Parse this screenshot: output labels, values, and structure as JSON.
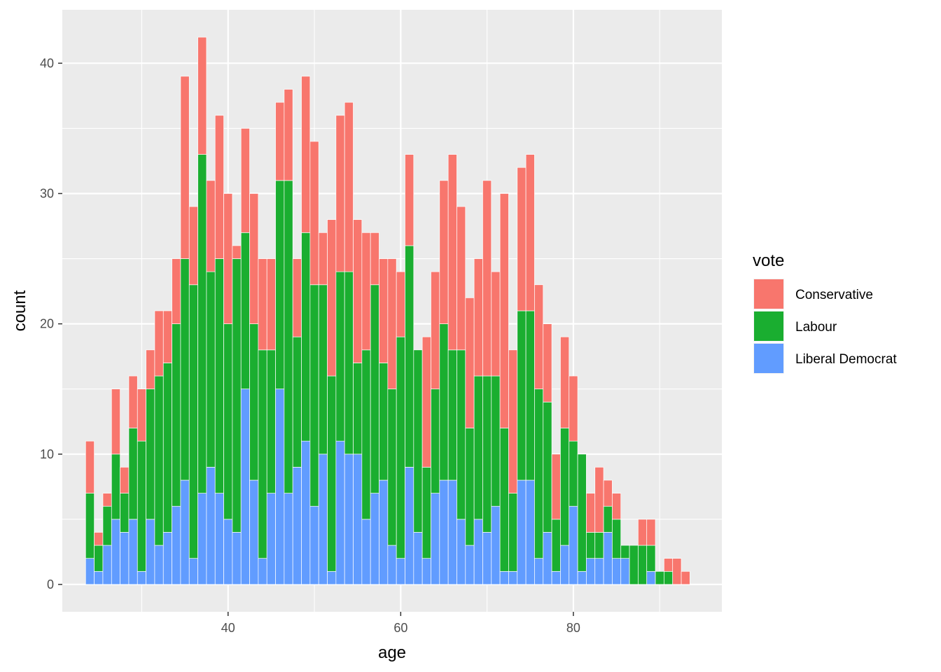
{
  "chart_data": {
    "type": "bar",
    "stacked": true,
    "xlabel": "age",
    "ylabel": "count",
    "xlim": [
      20.8,
      97.2
    ],
    "ylim": [
      -2.1,
      44.1
    ],
    "x_ticks": [
      40,
      60,
      80
    ],
    "y_ticks": [
      0,
      10,
      20,
      30,
      40
    ],
    "grid": true,
    "legend_title": "vote",
    "legend_position": "right",
    "x": [
      24,
      25,
      26,
      27,
      28,
      29,
      30,
      31,
      32,
      33,
      34,
      35,
      36,
      37,
      38,
      39,
      40,
      41,
      42,
      43,
      44,
      45,
      46,
      47,
      48,
      49,
      50,
      51,
      52,
      53,
      54,
      55,
      56,
      57,
      58,
      59,
      60,
      61,
      62,
      63,
      64,
      65,
      66,
      67,
      68,
      69,
      70,
      71,
      72,
      73,
      74,
      75,
      76,
      77,
      78,
      79,
      80,
      81,
      82,
      83,
      84,
      85,
      86,
      87,
      88,
      89,
      90,
      91,
      92,
      93
    ],
    "series": [
      {
        "name": "Liberal Democrat",
        "color": "#619CFF",
        "values": [
          2,
          1,
          3,
          5,
          4,
          5,
          1,
          5,
          3,
          4,
          6,
          8,
          2,
          7,
          9,
          7,
          5,
          4,
          15,
          8,
          2,
          7,
          15,
          7,
          9,
          11,
          6,
          10,
          1,
          11,
          10,
          10,
          5,
          7,
          8,
          3,
          2,
          9,
          4,
          2,
          7,
          8,
          8,
          5,
          3,
          5,
          4,
          6,
          1,
          1,
          8,
          8,
          2,
          4,
          1,
          3,
          6,
          1,
          2,
          2,
          4,
          2,
          2,
          0,
          0,
          1,
          0,
          0,
          0,
          0
        ]
      },
      {
        "name": "Labour",
        "color": "#1AAE30",
        "values": [
          5,
          2,
          3,
          5,
          3,
          7,
          10,
          10,
          13,
          13,
          14,
          17,
          21,
          26,
          15,
          18,
          15,
          21,
          12,
          12,
          16,
          11,
          16,
          24,
          10,
          16,
          17,
          13,
          15,
          13,
          14,
          7,
          13,
          16,
          9,
          12,
          17,
          17,
          14,
          7,
          8,
          12,
          10,
          13,
          9,
          11,
          12,
          10,
          11,
          6,
          13,
          13,
          13,
          10,
          4,
          9,
          5,
          9,
          2,
          2,
          2,
          3,
          1,
          3,
          3,
          2,
          1,
          1,
          0,
          0
        ]
      },
      {
        "name": "Conservative",
        "color": "#F8766D",
        "values": [
          4,
          1,
          1,
          5,
          2,
          4,
          4,
          3,
          5,
          4,
          5,
          14,
          6,
          9,
          7,
          11,
          10,
          1,
          8,
          10,
          7,
          7,
          6,
          7,
          6,
          12,
          11,
          4,
          12,
          12,
          13,
          11,
          9,
          4,
          8,
          10,
          5,
          7,
          0,
          10,
          9,
          11,
          15,
          11,
          10,
          9,
          15,
          8,
          18,
          11,
          11,
          12,
          8,
          6,
          5,
          7,
          5,
          0,
          3,
          5,
          2,
          2,
          0,
          0,
          2,
          2,
          0,
          1,
          2,
          1
        ]
      }
    ]
  },
  "legend": {
    "title": "vote",
    "items": [
      {
        "label": "Conservative",
        "color": "#F8766D"
      },
      {
        "label": "Labour",
        "color": "#1AAE30"
      },
      {
        "label": "Liberal Democrat",
        "color": "#619CFF"
      }
    ]
  }
}
